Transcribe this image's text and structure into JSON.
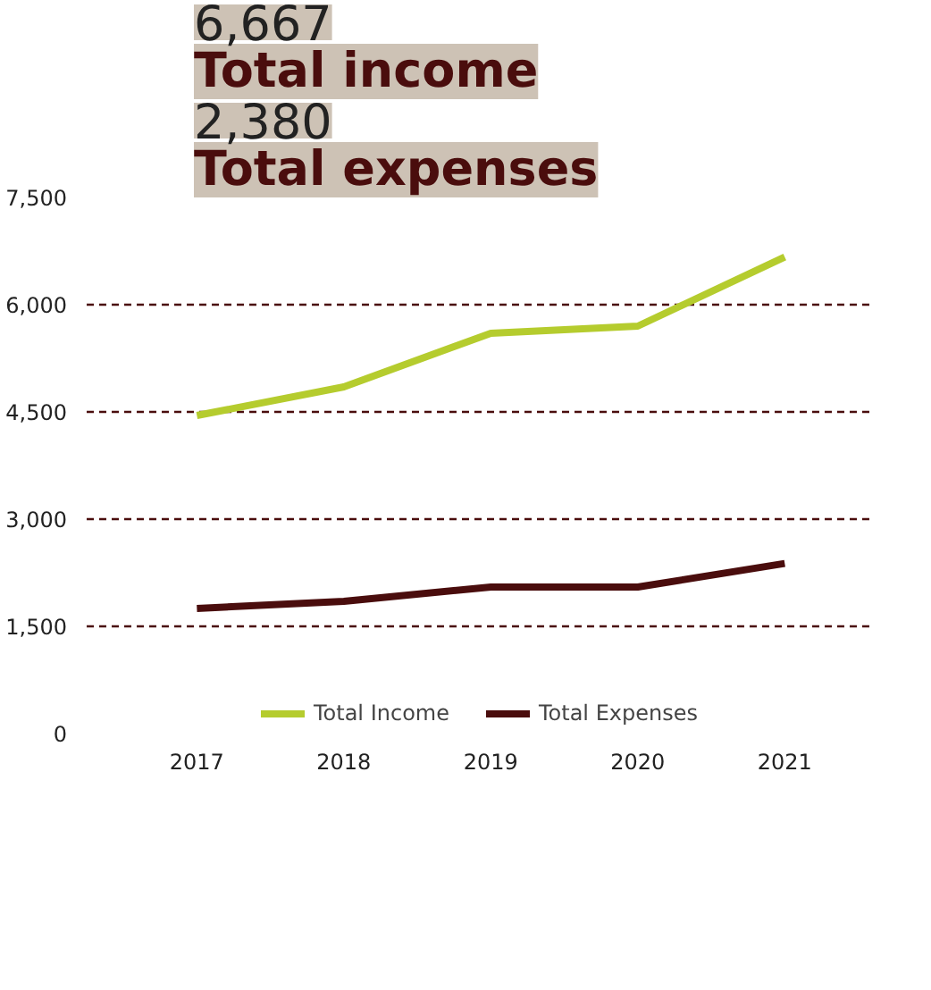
{
  "chart_data": {
    "type": "line",
    "categories": [
      "2017",
      "2018",
      "2019",
      "2020",
      "2021"
    ],
    "series": [
      {
        "name": "Total Income",
        "color": "#b5cc2e",
        "values": [
          4450,
          4850,
          5600,
          5700,
          6667
        ]
      },
      {
        "name": "Total Expenses",
        "color": "#4a0d0d",
        "values": [
          1750,
          1850,
          2050,
          2050,
          2380
        ]
      }
    ],
    "ylim": [
      0,
      7500
    ],
    "yticks": [
      {
        "value": 0,
        "label": "0"
      },
      {
        "value": 1500,
        "label": "1,500"
      },
      {
        "value": 3000,
        "label": "3,000"
      },
      {
        "value": 4500,
        "label": "4,500"
      },
      {
        "value": 6000,
        "label": "6,000"
      },
      {
        "value": 7500,
        "label": "7,500"
      }
    ],
    "grid": "y",
    "legend": "bottom",
    "marker": "none",
    "line_style": "solid",
    "annotations": [
      "6,667",
      "Total income",
      "2,380",
      "Total expenses"
    ]
  }
}
